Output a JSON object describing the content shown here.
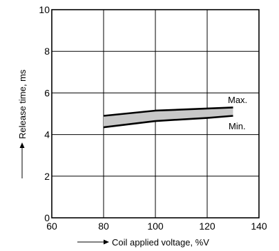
{
  "chart_data": {
    "type": "area",
    "title": "",
    "xlabel": "Coil applied voltage, %V",
    "ylabel": "Release time, ms",
    "xlim": [
      60,
      140
    ],
    "ylim": [
      0,
      10
    ],
    "x_ticks": [
      60,
      80,
      100,
      120,
      140
    ],
    "y_ticks": [
      0,
      2,
      4,
      6,
      8,
      10
    ],
    "grid": true,
    "band_fill": "#c8c8c8",
    "series": [
      {
        "name": "Max.",
        "x": [
          80,
          100,
          120,
          130
        ],
        "y": [
          4.9,
          5.15,
          5.25,
          5.3
        ]
      },
      {
        "name": "Min.",
        "x": [
          80,
          100,
          120,
          130
        ],
        "y": [
          4.35,
          4.65,
          4.8,
          4.9
        ]
      }
    ]
  }
}
